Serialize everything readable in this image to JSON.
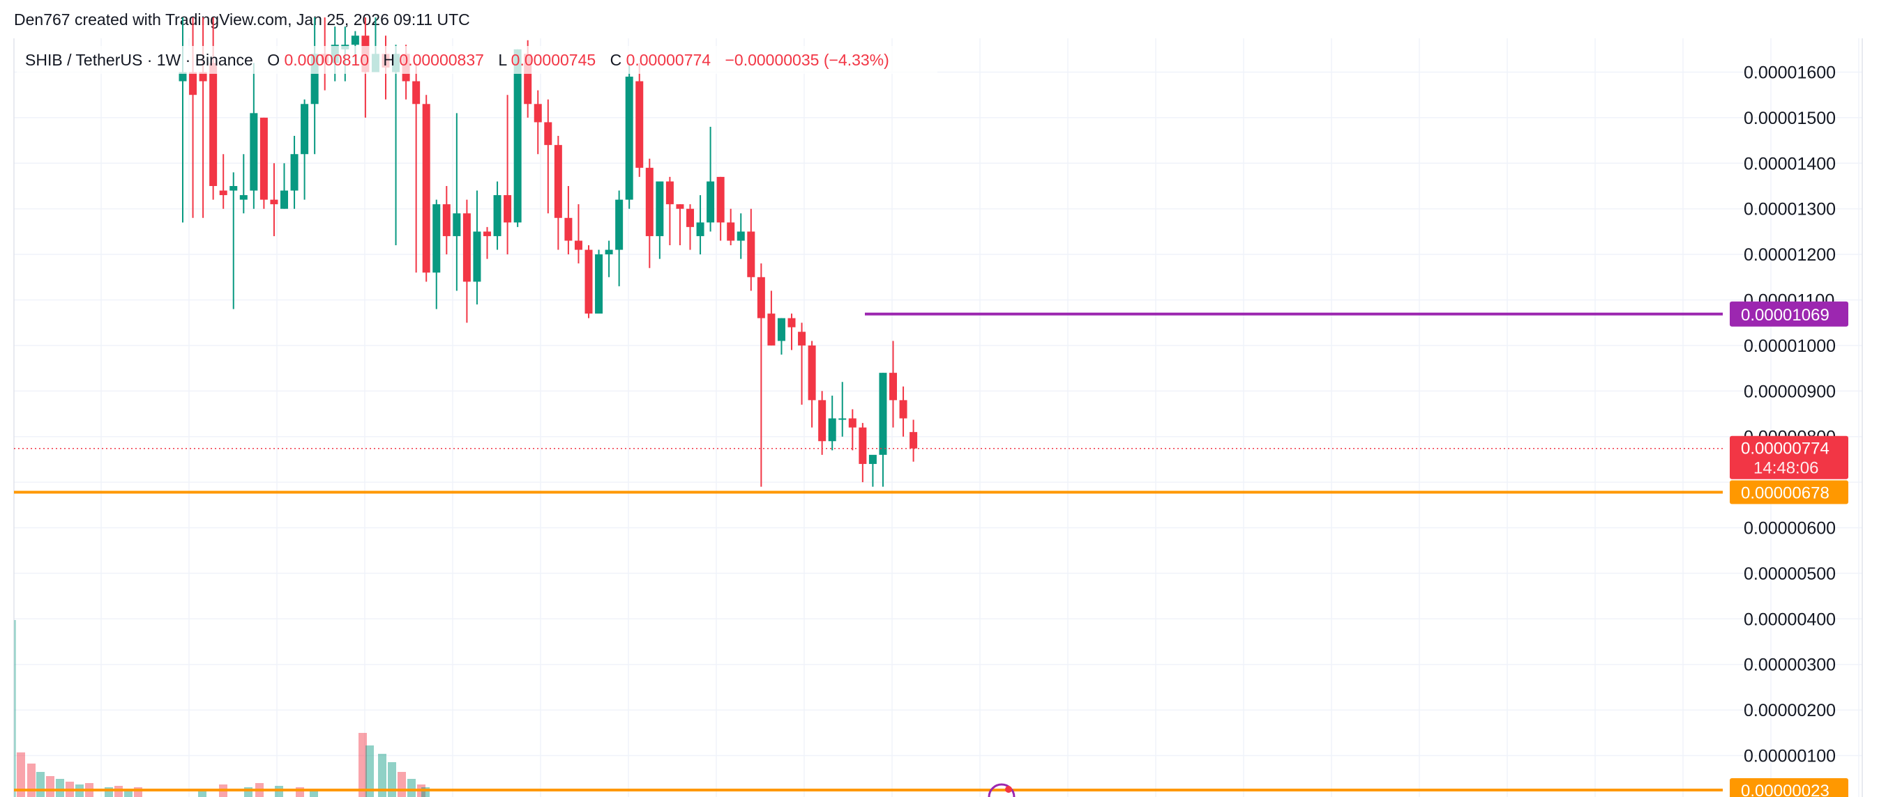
{
  "credit": "Den767 created with TradingView.com, Jan 25, 2026 09:11 UTC",
  "legend": {
    "symbol": "SHIB / TetherUS · 1W · Binance",
    "open_label": "O",
    "open": "0.00000810",
    "high_label": "H",
    "high": "0.00000837",
    "low_label": "L",
    "low": "0.00000745",
    "close_label": "C",
    "close": "0.00000774",
    "change": "−0.00000035 (−4.33%)"
  },
  "colors": {
    "up": "#089981",
    "down": "#f23645",
    "purple_line": "#9c27b0",
    "orange_line": "#ff9800",
    "grid": "#f0f3fa",
    "text": "#131722"
  },
  "price_tags": {
    "purple": "0.00001069",
    "current": "0.00000774",
    "countdown": "14:48:06",
    "orange": "0.00000678",
    "bottom": "0.00000023"
  },
  "chart_data": {
    "type": "candlestick",
    "symbol": "SHIB / TetherUS",
    "timeframe": "1W",
    "exchange": "Binance",
    "y_ticks": [
      "0.00001600",
      "0.00001500",
      "0.00001400",
      "0.00001300",
      "0.00001200",
      "0.00001100",
      "0.00001000",
      "0.00000900",
      "0.00000800",
      "0.00000600",
      "0.00000500",
      "0.00000400",
      "0.00000300",
      "0.00000200",
      "0.00000100"
    ],
    "ylim": [
      2e-07,
      1.67e-05
    ],
    "horizontal_lines": [
      {
        "price": 1.069e-05,
        "color": "purple"
      },
      {
        "price": 6.78e-06,
        "color": "orange"
      },
      {
        "price": 7.74e-06,
        "color": "red",
        "style": "dotted"
      }
    ],
    "candles_ohlc_e8": [
      [
        1580,
        1720,
        1270,
        1600
      ],
      [
        1600,
        1720,
        1280,
        1550
      ],
      [
        1600,
        1720,
        1280,
        1580
      ],
      [
        1620,
        1720,
        1320,
        1350
      ],
      [
        1340,
        1420,
        1300,
        1330
      ],
      [
        1340,
        1380,
        1080,
        1350
      ],
      [
        1320,
        1420,
        1290,
        1330
      ],
      [
        1340,
        1620,
        1300,
        1510
      ],
      [
        1500,
        1500,
        1300,
        1320
      ],
      [
        1320,
        1400,
        1240,
        1310
      ],
      [
        1300,
        1400,
        1300,
        1340
      ],
      [
        1340,
        1460,
        1300,
        1420
      ],
      [
        1420,
        1540,
        1320,
        1530
      ],
      [
        1530,
        1720,
        1420,
        1640
      ],
      [
        1640,
        1720,
        1560,
        1620
      ],
      [
        1620,
        1700,
        1580,
        1660
      ],
      [
        1650,
        1700,
        1580,
        1660
      ],
      [
        1660,
        1690,
        1620,
        1680
      ],
      [
        1680,
        1720,
        1500,
        1600
      ],
      [
        1600,
        1720,
        1620,
        1640
      ],
      [
        1640,
        1680,
        1540,
        1610
      ],
      [
        1600,
        1660,
        1220,
        1640
      ],
      [
        1640,
        1660,
        1540,
        1580
      ],
      [
        1580,
        1620,
        1160,
        1530
      ],
      [
        1530,
        1550,
        1140,
        1160
      ],
      [
        1160,
        1320,
        1080,
        1310
      ],
      [
        1310,
        1350,
        1200,
        1240
      ],
      [
        1240,
        1510,
        1120,
        1290
      ],
      [
        1290,
        1320,
        1050,
        1140
      ],
      [
        1140,
        1340,
        1090,
        1250
      ],
      [
        1250,
        1260,
        1190,
        1240
      ],
      [
        1240,
        1360,
        1210,
        1330
      ],
      [
        1330,
        1550,
        1200,
        1270
      ],
      [
        1270,
        1650,
        1260,
        1650
      ],
      [
        1640,
        1670,
        1500,
        1530
      ],
      [
        1530,
        1560,
        1420,
        1490
      ],
      [
        1490,
        1540,
        1290,
        1440
      ],
      [
        1440,
        1460,
        1210,
        1280
      ],
      [
        1280,
        1350,
        1200,
        1230
      ],
      [
        1230,
        1310,
        1180,
        1210
      ],
      [
        1210,
        1220,
        1060,
        1070
      ],
      [
        1070,
        1210,
        1100,
        1200
      ],
      [
        1200,
        1230,
        1150,
        1210
      ],
      [
        1210,
        1340,
        1130,
        1320
      ],
      [
        1320,
        1620,
        1300,
        1590
      ],
      [
        1580,
        1620,
        1370,
        1390
      ],
      [
        1390,
        1410,
        1170,
        1240
      ],
      [
        1240,
        1350,
        1190,
        1360
      ],
      [
        1360,
        1370,
        1220,
        1310
      ],
      [
        1310,
        1310,
        1220,
        1300
      ],
      [
        1300,
        1310,
        1210,
        1260
      ],
      [
        1240,
        1330,
        1200,
        1270
      ],
      [
        1270,
        1480,
        1250,
        1360
      ],
      [
        1370,
        1370,
        1230,
        1270
      ],
      [
        1270,
        1300,
        1220,
        1230
      ],
      [
        1230,
        1290,
        1190,
        1250
      ],
      [
        1250,
        1300,
        1120,
        1150
      ],
      [
        1150,
        1180,
        690,
        1060
      ],
      [
        1070,
        1120,
        1000,
        1000
      ],
      [
        1010,
        1060,
        980,
        1060
      ],
      [
        1060,
        1070,
        990,
        1040
      ],
      [
        1030,
        1050,
        870,
        1000
      ],
      [
        1000,
        1010,
        820,
        880
      ],
      [
        880,
        900,
        760,
        790
      ],
      [
        790,
        890,
        770,
        840
      ],
      [
        840,
        920,
        800,
        840
      ],
      [
        840,
        860,
        770,
        820
      ],
      [
        820,
        830,
        700,
        740
      ],
      [
        740,
        750,
        690,
        760
      ],
      [
        760,
        940,
        690,
        940
      ],
      [
        940,
        1010,
        820,
        880
      ],
      [
        880,
        910,
        800,
        840
      ],
      [
        810,
        837,
        745,
        774
      ]
    ]
  }
}
